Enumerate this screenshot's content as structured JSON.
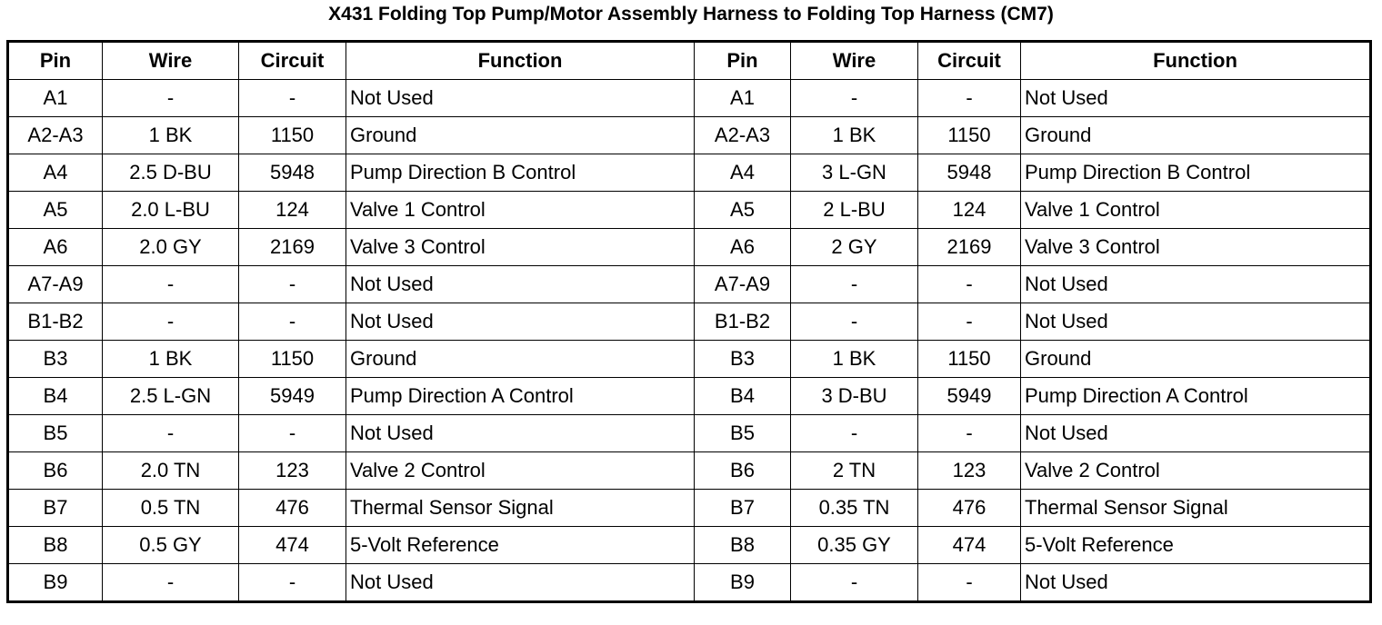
{
  "title": "X431 Folding Top Pump/Motor Assembly Harness to Folding Top Harness (CM7)",
  "table": {
    "header": [
      "Pin",
      "Wire",
      "Circuit",
      "Function",
      "Pin",
      "Wire",
      "Circuit",
      "Function"
    ],
    "rows": [
      [
        "A1",
        "-",
        "-",
        "Not Used",
        "A1",
        "-",
        "-",
        "Not Used"
      ],
      [
        "A2-A3",
        "1 BK",
        "1150",
        "Ground",
        "A2-A3",
        "1 BK",
        "1150",
        "Ground"
      ],
      [
        "A4",
        "2.5 D-BU",
        "5948",
        "Pump Direction B Control",
        "A4",
        "3 L-GN",
        "5948",
        "Pump Direction B Control"
      ],
      [
        "A5",
        "2.0 L-BU",
        "124",
        "Valve 1 Control",
        "A5",
        "2 L-BU",
        "124",
        "Valve 1 Control"
      ],
      [
        "A6",
        "2.0 GY",
        "2169",
        "Valve 3 Control",
        "A6",
        "2 GY",
        "2169",
        "Valve 3 Control"
      ],
      [
        "A7-A9",
        "-",
        "-",
        "Not Used",
        "A7-A9",
        "-",
        "-",
        "Not Used"
      ],
      [
        "B1-B2",
        "-",
        "-",
        "Not Used",
        "B1-B2",
        "-",
        "-",
        "Not Used"
      ],
      [
        "B3",
        "1 BK",
        "1150",
        "Ground",
        "B3",
        "1 BK",
        "1150",
        "Ground"
      ],
      [
        "B4",
        "2.5 L-GN",
        "5949",
        "Pump Direction A Control",
        "B4",
        "3 D-BU",
        "5949",
        "Pump Direction A Control"
      ],
      [
        "B5",
        "-",
        "-",
        "Not Used",
        "B5",
        "-",
        "-",
        "Not Used"
      ],
      [
        "B6",
        "2.0 TN",
        "123",
        "Valve 2 Control",
        "B6",
        "2 TN",
        "123",
        "Valve 2 Control"
      ],
      [
        "B7",
        "0.5 TN",
        "476",
        "Thermal Sensor Signal",
        "B7",
        "0.35 TN",
        "476",
        "Thermal Sensor Signal"
      ],
      [
        "B8",
        "0.5 GY",
        "474",
        "5-Volt Reference",
        "B8",
        "0.35 GY",
        "474",
        "5-Volt Reference"
      ],
      [
        "B9",
        "-",
        "-",
        "Not Used",
        "B9",
        "-",
        "-",
        "Not Used"
      ]
    ]
  }
}
